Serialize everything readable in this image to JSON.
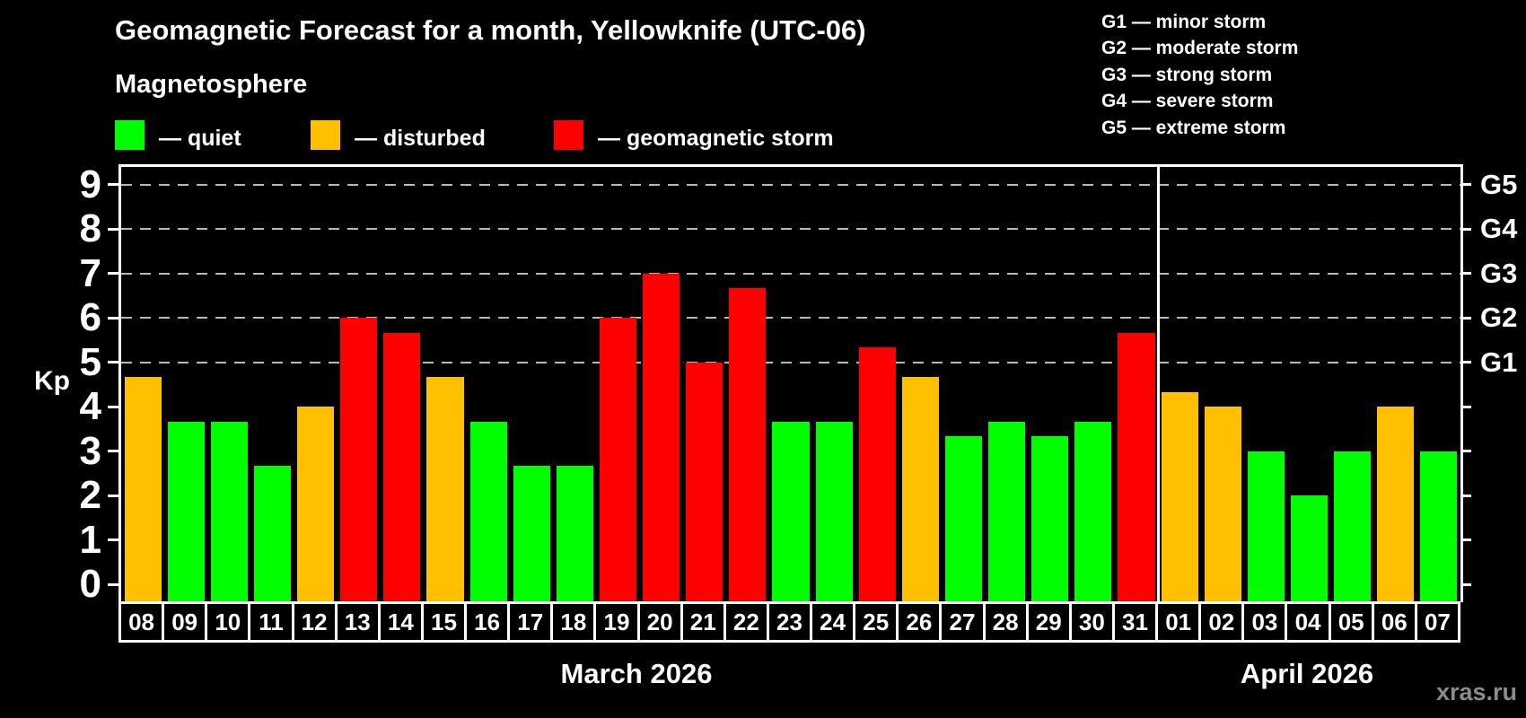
{
  "header": {
    "title": "Geomagnetic Forecast for a month, Yellowknife (UTC-06)",
    "subtitle": "Magnetosphere"
  },
  "legend": {
    "items": [
      {
        "name": "quiet",
        "label": "— quiet",
        "color": "#00ff00"
      },
      {
        "name": "disturbed",
        "label": "— disturbed",
        "color": "#ffc000"
      },
      {
        "name": "geomagnetic-storm",
        "label": "— geomagnetic storm",
        "color": "#ff0000"
      }
    ]
  },
  "storm_scale": {
    "lines": [
      {
        "label": "G1 — minor storm"
      },
      {
        "label": "G2 — moderate storm"
      },
      {
        "label": "G3 — strong storm"
      },
      {
        "label": "G4 — severe storm"
      },
      {
        "label": "G5 — extreme storm"
      }
    ]
  },
  "watermark": "xras.ru",
  "chart_data": {
    "type": "bar",
    "title": "Geomagnetic Forecast for a month, Yellowknife (UTC-06)",
    "ylabel": "Kp",
    "ylim": [
      0,
      9
    ],
    "yticks": [
      0,
      1,
      2,
      3,
      4,
      5,
      6,
      7,
      8,
      9
    ],
    "gridlines_at": [
      5,
      6,
      7,
      8,
      9
    ],
    "grid": "dashed, horizontal, only at storm levels 5-9",
    "right_axis": [
      {
        "label": "G1",
        "value": 5
      },
      {
        "label": "G2",
        "value": 6
      },
      {
        "label": "G3",
        "value": 7
      },
      {
        "label": "G4",
        "value": 8
      },
      {
        "label": "G5",
        "value": 9
      }
    ],
    "status_colors": {
      "quiet": "#00ff00",
      "disturbed": "#ffc000",
      "storm": "#ff0000"
    },
    "months": [
      {
        "label": "March 2026",
        "bars": [
          {
            "day": "08",
            "kp": 4.67,
            "status": "disturbed"
          },
          {
            "day": "09",
            "kp": 3.67,
            "status": "quiet"
          },
          {
            "day": "10",
            "kp": 3.67,
            "status": "quiet"
          },
          {
            "day": "11",
            "kp": 2.67,
            "status": "quiet"
          },
          {
            "day": "12",
            "kp": 4.0,
            "status": "disturbed"
          },
          {
            "day": "13",
            "kp": 6.0,
            "status": "storm"
          },
          {
            "day": "14",
            "kp": 5.67,
            "status": "storm"
          },
          {
            "day": "15",
            "kp": 4.67,
            "status": "disturbed"
          },
          {
            "day": "16",
            "kp": 3.67,
            "status": "quiet"
          },
          {
            "day": "17",
            "kp": 2.67,
            "status": "quiet"
          },
          {
            "day": "18",
            "kp": 2.67,
            "status": "quiet"
          },
          {
            "day": "19",
            "kp": 6.0,
            "status": "storm"
          },
          {
            "day": "20",
            "kp": 7.0,
            "status": "storm"
          },
          {
            "day": "21",
            "kp": 5.0,
            "status": "storm"
          },
          {
            "day": "22",
            "kp": 6.67,
            "status": "storm"
          },
          {
            "day": "23",
            "kp": 3.67,
            "status": "quiet"
          },
          {
            "day": "24",
            "kp": 3.67,
            "status": "quiet"
          },
          {
            "day": "25",
            "kp": 5.33,
            "status": "storm"
          },
          {
            "day": "26",
            "kp": 4.67,
            "status": "disturbed"
          },
          {
            "day": "27",
            "kp": 3.33,
            "status": "quiet"
          },
          {
            "day": "28",
            "kp": 3.67,
            "status": "quiet"
          },
          {
            "day": "29",
            "kp": 3.33,
            "status": "quiet"
          },
          {
            "day": "30",
            "kp": 3.67,
            "status": "quiet"
          },
          {
            "day": "31",
            "kp": 5.67,
            "status": "storm"
          }
        ]
      },
      {
        "label": "April 2026",
        "bars": [
          {
            "day": "01",
            "kp": 4.33,
            "status": "disturbed"
          },
          {
            "day": "02",
            "kp": 4.0,
            "status": "disturbed"
          },
          {
            "day": "03",
            "kp": 3.0,
            "status": "quiet"
          },
          {
            "day": "04",
            "kp": 2.0,
            "status": "quiet"
          },
          {
            "day": "05",
            "kp": 3.0,
            "status": "quiet"
          },
          {
            "day": "06",
            "kp": 4.0,
            "status": "disturbed"
          },
          {
            "day": "07",
            "kp": 3.0,
            "status": "quiet"
          }
        ]
      }
    ]
  }
}
